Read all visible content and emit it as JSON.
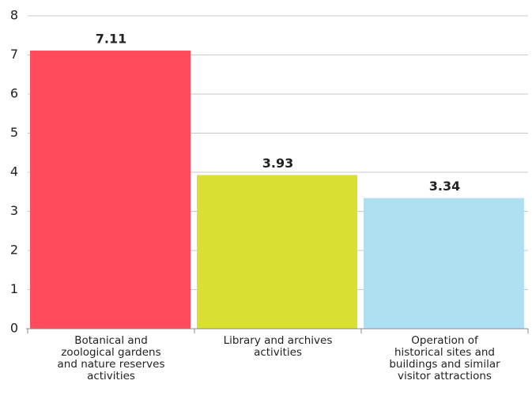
{
  "chart_data": {
    "type": "bar",
    "categories": [
      "Botanical and zoological gardens and nature reserves activities",
      "Library and archives activities",
      "Operation of historical sites and buildings and similar visitor attractions"
    ],
    "values": [
      7.11,
      3.93,
      3.34
    ],
    "colors": [
      "#ff4b5c",
      "#d9e032",
      "#aee0f2"
    ],
    "ylim": [
      0,
      8
    ],
    "yticks": [
      0,
      1,
      2,
      3,
      4,
      5,
      6,
      7,
      8
    ],
    "grid": true
  }
}
